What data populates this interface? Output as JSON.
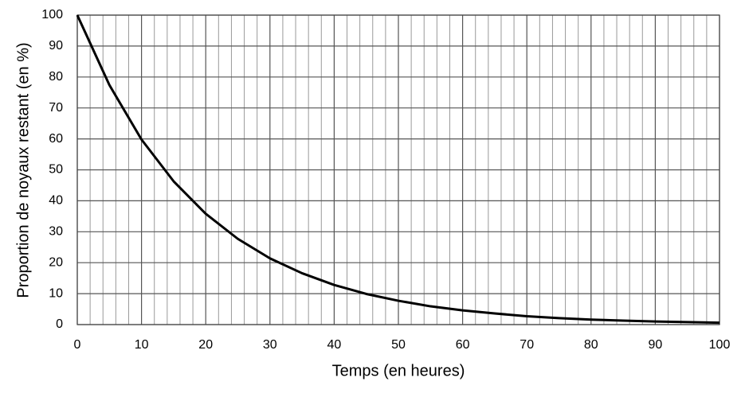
{
  "chart_data": {
    "type": "line",
    "x_label": "Temps (en heures)",
    "y_label": "Proportion de noyaux restant (en %)",
    "x": [
      0,
      5,
      10,
      15,
      20,
      25,
      30,
      35,
      40,
      45,
      50,
      55,
      60,
      65,
      70,
      75,
      80,
      85,
      90,
      95,
      100
    ],
    "values": [
      100,
      77.4,
      59.8,
      46.3,
      35.8,
      27.7,
      21.4,
      16.6,
      12.8,
      9.9,
      7.7,
      5.9,
      4.6,
      3.6,
      2.7,
      2.1,
      1.6,
      1.3,
      1.0,
      0.8,
      0.6
    ],
    "color": "#000000",
    "xlim": [
      0,
      100
    ],
    "xticks": [
      0,
      10,
      20,
      30,
      40,
      50,
      60,
      70,
      80,
      90,
      100
    ],
    "x_minor_ticks": [
      2,
      4,
      6,
      8,
      12,
      14,
      16,
      18,
      22,
      24,
      26,
      28,
      32,
      34,
      36,
      38,
      42,
      44,
      46,
      48,
      52,
      54,
      56,
      58,
      62,
      64,
      66,
      68,
      72,
      74,
      76,
      78,
      82,
      84,
      86,
      88,
      92,
      94,
      96,
      98
    ],
    "ylim": [
      0,
      100
    ],
    "yticks": [
      0,
      10,
      20,
      30,
      40,
      50,
      60,
      70,
      80,
      90,
      100
    ],
    "grid": true
  }
}
